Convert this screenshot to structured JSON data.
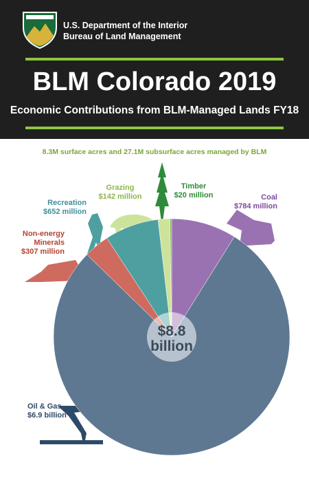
{
  "header": {
    "agency_line1": "U.S. Department of the Interior",
    "agency_line2": "Bureau of Land Management"
  },
  "chart_data": {
    "type": "pie",
    "title": "BLM Colorado 2019",
    "subtitle": "Economic Contributions from BLM-Managed Lands FY18",
    "note": "8.3M surface acres and 27.1M subsurface acres managed by BLM",
    "center_label": [
      "$8.8",
      "billion"
    ],
    "categories": [
      "Coal",
      "Oil & Gas",
      "Non-energy Minerals",
      "Recreation",
      "Grazing",
      "Timber"
    ],
    "values": [
      784,
      6900,
      307,
      652,
      142,
      20
    ],
    "value_labels": [
      "$784 million",
      "$6.9 billion",
      "$307 million",
      "$652 million",
      "$142 million",
      "$20 million"
    ],
    "colors": [
      "#9a72b2",
      "#5e7891",
      "#cf6a5f",
      "#4e9fa0",
      "#cde39c",
      "#7fb54a"
    ],
    "label_colors": [
      "#7b4a9e",
      "#2d4a68",
      "#b4432f",
      "#3f8f99",
      "#8cb84a",
      "#2e8b3a"
    ]
  }
}
